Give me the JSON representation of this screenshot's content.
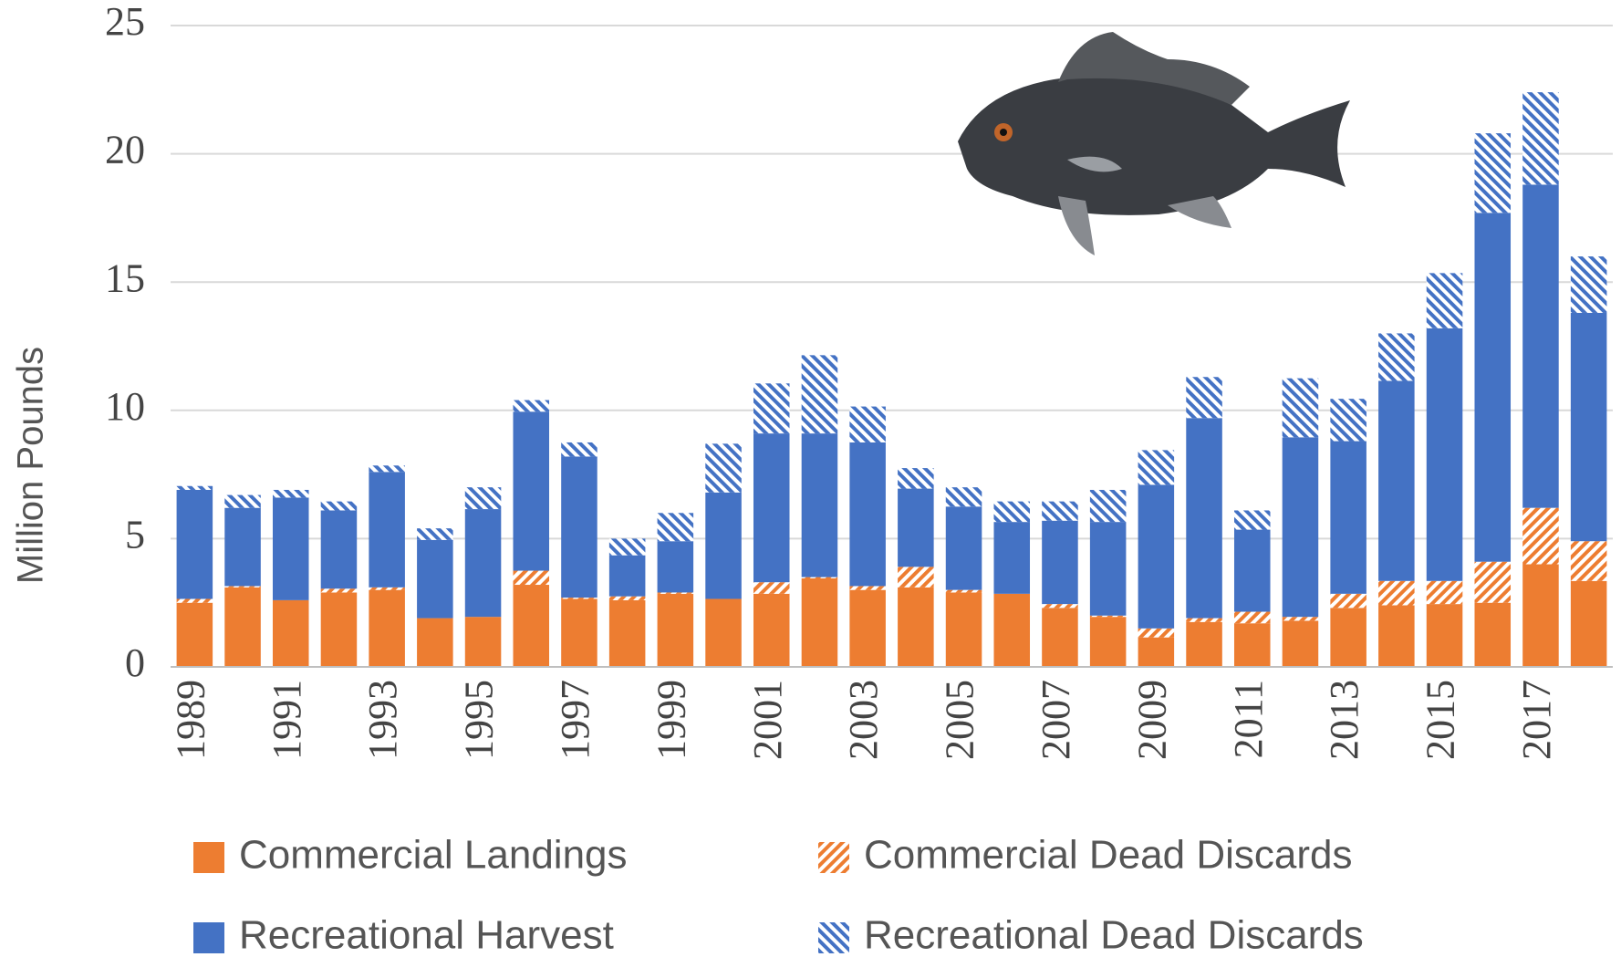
{
  "chart_data": {
    "type": "stacked-bar",
    "y_label": "Million Pounds",
    "categories": [
      "1989",
      null,
      "1991",
      null,
      "1993",
      null,
      "1995",
      null,
      "1997",
      null,
      "1999",
      null,
      "2001",
      null,
      "2003",
      null,
      "2005",
      null,
      "2007",
      null,
      "2009",
      null,
      "2011",
      null,
      "2013",
      null,
      "2015",
      null,
      "2017",
      null
    ],
    "series": [
      {
        "name": "Commercial Landings",
        "color": "#ed7d31",
        "pattern": "solid",
        "values": [
          2.5,
          3.1,
          2.6,
          2.9,
          3.0,
          1.9,
          1.95,
          3.2,
          2.65,
          2.6,
          2.85,
          2.65,
          2.85,
          3.45,
          3.0,
          3.1,
          2.9,
          2.85,
          2.3,
          1.95,
          1.15,
          1.75,
          1.7,
          1.8,
          2.3,
          2.4,
          2.45,
          2.5,
          4.0,
          3.35
        ]
      },
      {
        "name": "Commercial Dead Discards",
        "color": "#ed7d31",
        "pattern": "hatch",
        "values": [
          0.15,
          0.05,
          0.0,
          0.15,
          0.1,
          0.0,
          0.0,
          0.55,
          0.05,
          0.15,
          0.05,
          0.0,
          0.45,
          0.05,
          0.15,
          0.8,
          0.1,
          0.0,
          0.15,
          0.05,
          0.35,
          0.15,
          0.45,
          0.15,
          0.55,
          0.95,
          0.9,
          1.6,
          2.2,
          1.55
        ]
      },
      {
        "name": "Recreational Harvest",
        "color": "#4472c4",
        "pattern": "solid",
        "values": [
          4.25,
          3.05,
          4.0,
          3.05,
          4.5,
          3.05,
          4.2,
          6.2,
          5.5,
          1.6,
          2.0,
          4.15,
          5.8,
          5.6,
          5.6,
          3.05,
          3.25,
          2.8,
          3.25,
          3.65,
          5.6,
          7.8,
          3.2,
          7.0,
          5.95,
          7.8,
          9.85,
          13.6,
          12.6,
          8.9
        ]
      },
      {
        "name": "Recreational Dead Discards",
        "color": "#4472c4",
        "pattern": "hatch",
        "values": [
          0.15,
          0.5,
          0.3,
          0.35,
          0.25,
          0.45,
          0.85,
          0.45,
          0.55,
          0.65,
          1.1,
          1.9,
          1.95,
          3.05,
          1.4,
          0.8,
          0.75,
          0.8,
          0.75,
          1.25,
          1.35,
          1.6,
          0.75,
          2.3,
          1.65,
          1.85,
          2.15,
          3.1,
          3.6,
          2.2
        ]
      }
    ],
    "ylim": [
      0,
      25
    ],
    "yticks": [
      0,
      5,
      10,
      15,
      20,
      25
    ],
    "grid": true
  }
}
